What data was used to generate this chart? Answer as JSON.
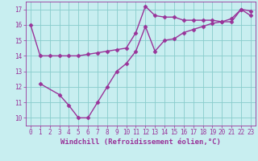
{
  "xlabel": "Windchill (Refroidissement éolien,°C)",
  "bg_color": "#c8eef0",
  "grid_color": "#88cccc",
  "line_color": "#993399",
  "xlim": [
    -0.5,
    23.5
  ],
  "ylim": [
    9.5,
    17.5
  ],
  "xticks": [
    0,
    1,
    2,
    3,
    4,
    5,
    6,
    7,
    8,
    9,
    10,
    11,
    12,
    13,
    14,
    15,
    16,
    17,
    18,
    19,
    20,
    21,
    22,
    23
  ],
  "yticks": [
    10,
    11,
    12,
    13,
    14,
    15,
    16,
    17
  ],
  "curve1_x": [
    0,
    1,
    2,
    3,
    4,
    5,
    6,
    7,
    8,
    9,
    10,
    11,
    12,
    13,
    14,
    15,
    16,
    17,
    18,
    19,
    20,
    21,
    22,
    23
  ],
  "curve1_y": [
    16.0,
    14.0,
    14.0,
    14.0,
    14.0,
    14.0,
    14.1,
    14.2,
    14.3,
    14.4,
    14.5,
    15.5,
    17.2,
    16.6,
    16.5,
    16.5,
    16.3,
    16.3,
    16.3,
    16.3,
    16.2,
    16.2,
    17.0,
    16.9
  ],
  "curve2_x": [
    1,
    3,
    4,
    5,
    6,
    7,
    8,
    9,
    10,
    11,
    12,
    13,
    14,
    15,
    16,
    17,
    18,
    19,
    20,
    21,
    22,
    23
  ],
  "curve2_y": [
    12.2,
    11.5,
    10.8,
    10.0,
    10.0,
    11.0,
    12.0,
    13.0,
    13.5,
    14.3,
    15.9,
    14.3,
    15.0,
    15.1,
    15.5,
    15.7,
    15.9,
    16.1,
    16.2,
    16.4,
    17.0,
    16.6
  ],
  "marker": "D",
  "markersize": 2.5,
  "linewidth": 1.0,
  "label_fontsize": 6.5,
  "tick_fontsize": 5.5
}
